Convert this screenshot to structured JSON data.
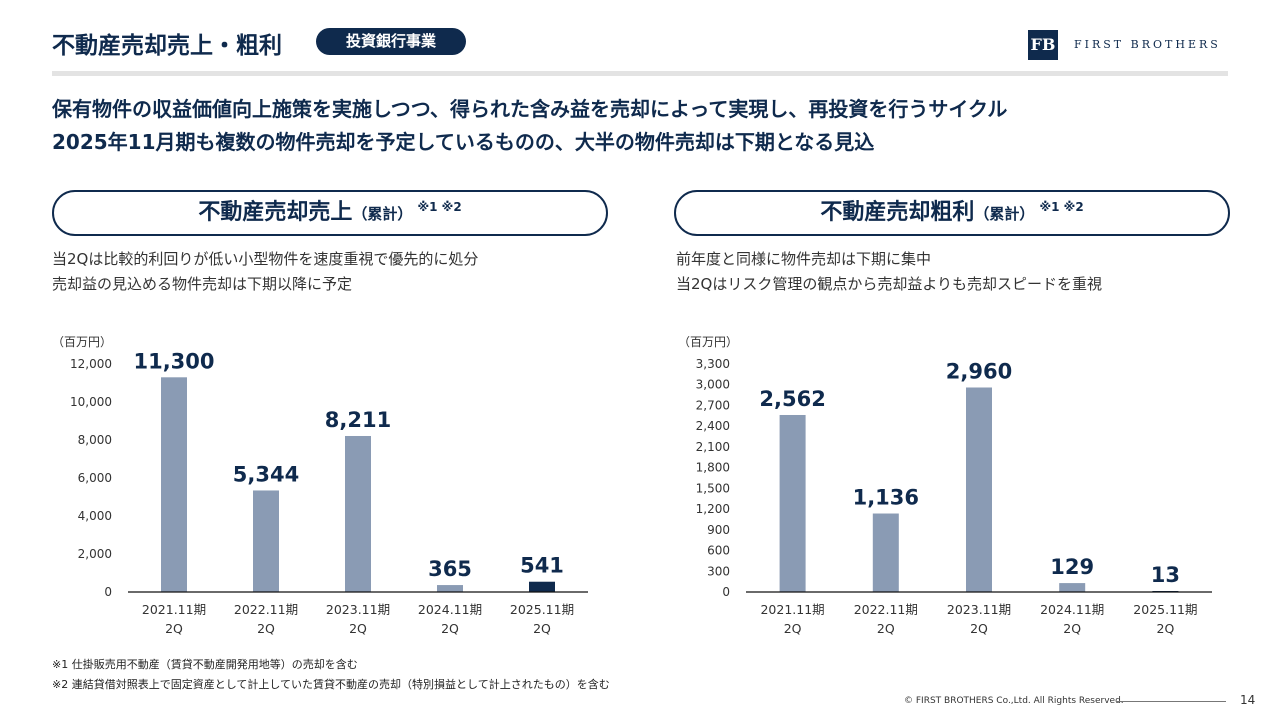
{
  "header": {
    "title": "不動産売却売上・粗利",
    "badge": "投資銀行事業",
    "logo_mark": "FB",
    "logo_text": "FIRST BROTHERS"
  },
  "lead": [
    "保有物件の収益価値向上施策を実施しつつ、得られた含み益を売却によって実現し、再投資を行うサイクル",
    "2025年11月期も複数の物件売却を予定しているものの、大半の物件売却は下期となる見込"
  ],
  "panels": [
    {
      "title": "不動産売却売上",
      "subtitle": "（累計）",
      "note": "※1 ※2",
      "desc": [
        "当2Qは比較的利回りが低い小型物件を速度重視で優先的に処分",
        "売却益の見込める物件売却は下期以降に予定"
      ],
      "unit": "（百万円）"
    },
    {
      "title": "不動産売却粗利",
      "subtitle": "（累計）",
      "note": "※1 ※2",
      "desc": [
        "前年度と同様に物件売却は下期に集中",
        "当2Qはリスク管理の観点から売却益よりも売却スピードを重視"
      ],
      "unit": "（百万円）"
    }
  ],
  "chart_data": [
    {
      "type": "bar",
      "title": "不動産売却売上",
      "categories": [
        "2021.11期\n2Q",
        "2022.11期\n2Q",
        "2023.11期\n2Q",
        "2024.11期\n2Q",
        "2025.11期\n2Q"
      ],
      "values": [
        11300,
        5344,
        8211,
        365,
        541
      ],
      "data_labels": [
        "11,300",
        "5,344",
        "8,211",
        "365",
        "541"
      ],
      "ylim": [
        0,
        12000
      ],
      "yticks": [
        "0",
        "2,000",
        "4,000",
        "6,000",
        "8,000",
        "10,000",
        "12,000"
      ],
      "ytick_values": [
        0,
        2000,
        4000,
        6000,
        8000,
        10000,
        12000
      ],
      "highlight_index": 4,
      "colors": {
        "bar": "#8a9bb4",
        "highlight": "#0f2a4d",
        "label": "#0f2a4d"
      }
    },
    {
      "type": "bar",
      "title": "不動産売却粗利",
      "categories": [
        "2021.11期\n2Q",
        "2022.11期\n2Q",
        "2023.11期\n2Q",
        "2024.11期\n2Q",
        "2025.11期\n2Q"
      ],
      "values": [
        2562,
        1136,
        2960,
        129,
        13
      ],
      "data_labels": [
        "2,562",
        "1,136",
        "2,960",
        "129",
        "13"
      ],
      "ylim": [
        0,
        3300
      ],
      "yticks": [
        "0",
        "300",
        "600",
        "900",
        "1,200",
        "1,500",
        "1,800",
        "2,100",
        "2,400",
        "2,700",
        "3,000",
        "3,300"
      ],
      "ytick_values": [
        0,
        300,
        600,
        900,
        1200,
        1500,
        1800,
        2100,
        2400,
        2700,
        3000,
        3300
      ],
      "highlight_index": 4,
      "colors": {
        "bar": "#8a9bb4",
        "highlight": "#0f2a4d",
        "label": "#0f2a4d"
      }
    }
  ],
  "footnotes": [
    "※1 仕掛販売用不動産（賃貸不動産開発用地等）の売却を含む",
    "※2 連結貸借対照表上で固定資産として計上していた賃貸不動産の売却（特別損益として計上されたもの）を含む"
  ],
  "footer": {
    "copyright": "© FIRST BROTHERS Co.,Ltd. All Rights Reserved.",
    "page": "14"
  }
}
